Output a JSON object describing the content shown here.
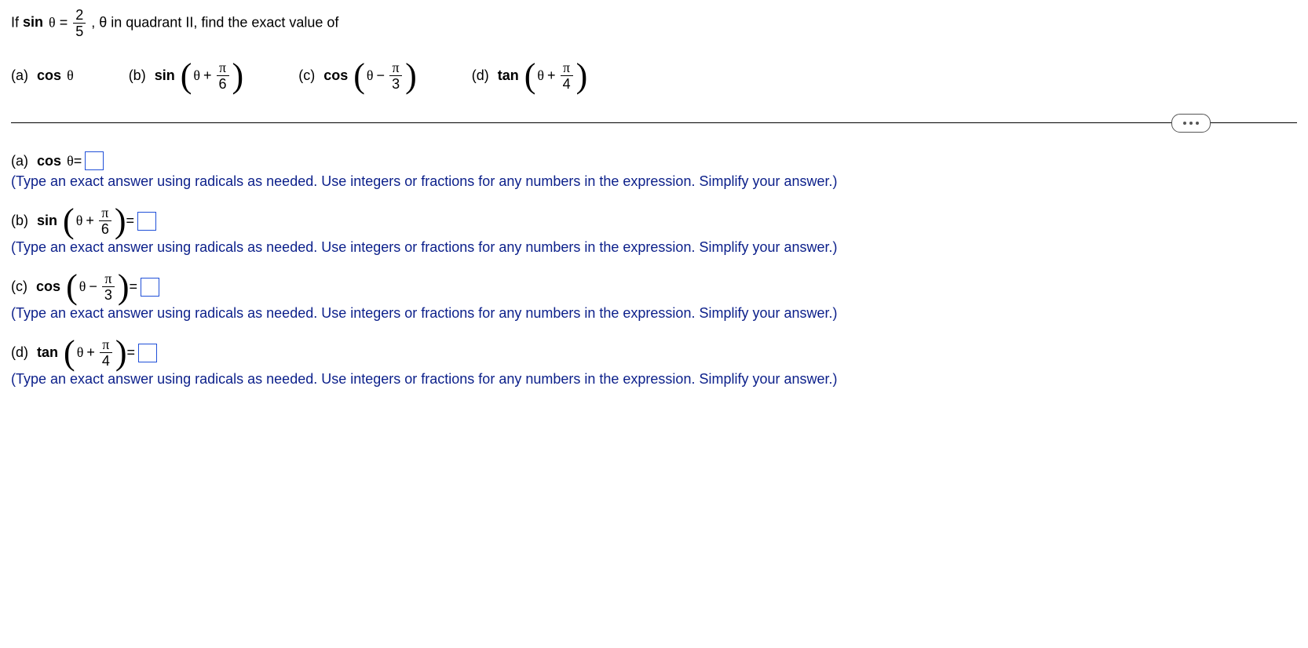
{
  "problem": {
    "prefix": "If ",
    "sin": "sin",
    "theta": "θ",
    "eq": " = ",
    "frac_num": "2",
    "frac_den": "5",
    "suffix": ", θ in quadrant II, find the exact value of"
  },
  "parts_row": {
    "a": {
      "label": "(a)",
      "fn": "cos",
      "arg": "θ"
    },
    "b": {
      "label": "(b)",
      "fn": "sin",
      "theta": "θ",
      "op": "+",
      "pi": "π",
      "den": "6"
    },
    "c": {
      "label": "(c)",
      "fn": "cos",
      "theta": "θ",
      "op": "−",
      "pi": "π",
      "den": "3"
    },
    "d": {
      "label": "(d)",
      "fn": "tan",
      "theta": "θ",
      "op": "+",
      "pi": "π",
      "den": "4"
    }
  },
  "answers": {
    "a": {
      "label": "(a)",
      "fn": "cos",
      "arg": "θ",
      "eq": " = "
    },
    "b": {
      "label": "(b)",
      "fn": "sin",
      "theta": "θ",
      "op": "+",
      "pi": "π",
      "den": "6",
      "eq": " = "
    },
    "c": {
      "label": "(c)",
      "fn": "cos",
      "theta": "θ",
      "op": "−",
      "pi": "π",
      "den": "3",
      "eq": " = "
    },
    "d": {
      "label": "(d)",
      "fn": "tan",
      "theta": "θ",
      "op": "+",
      "pi": "π",
      "den": "4",
      "eq": " = "
    }
  },
  "hint": "(Type an exact answer using radicals as needed. Use integers or fractions for any numbers in the expression. Simplify your answer.)"
}
